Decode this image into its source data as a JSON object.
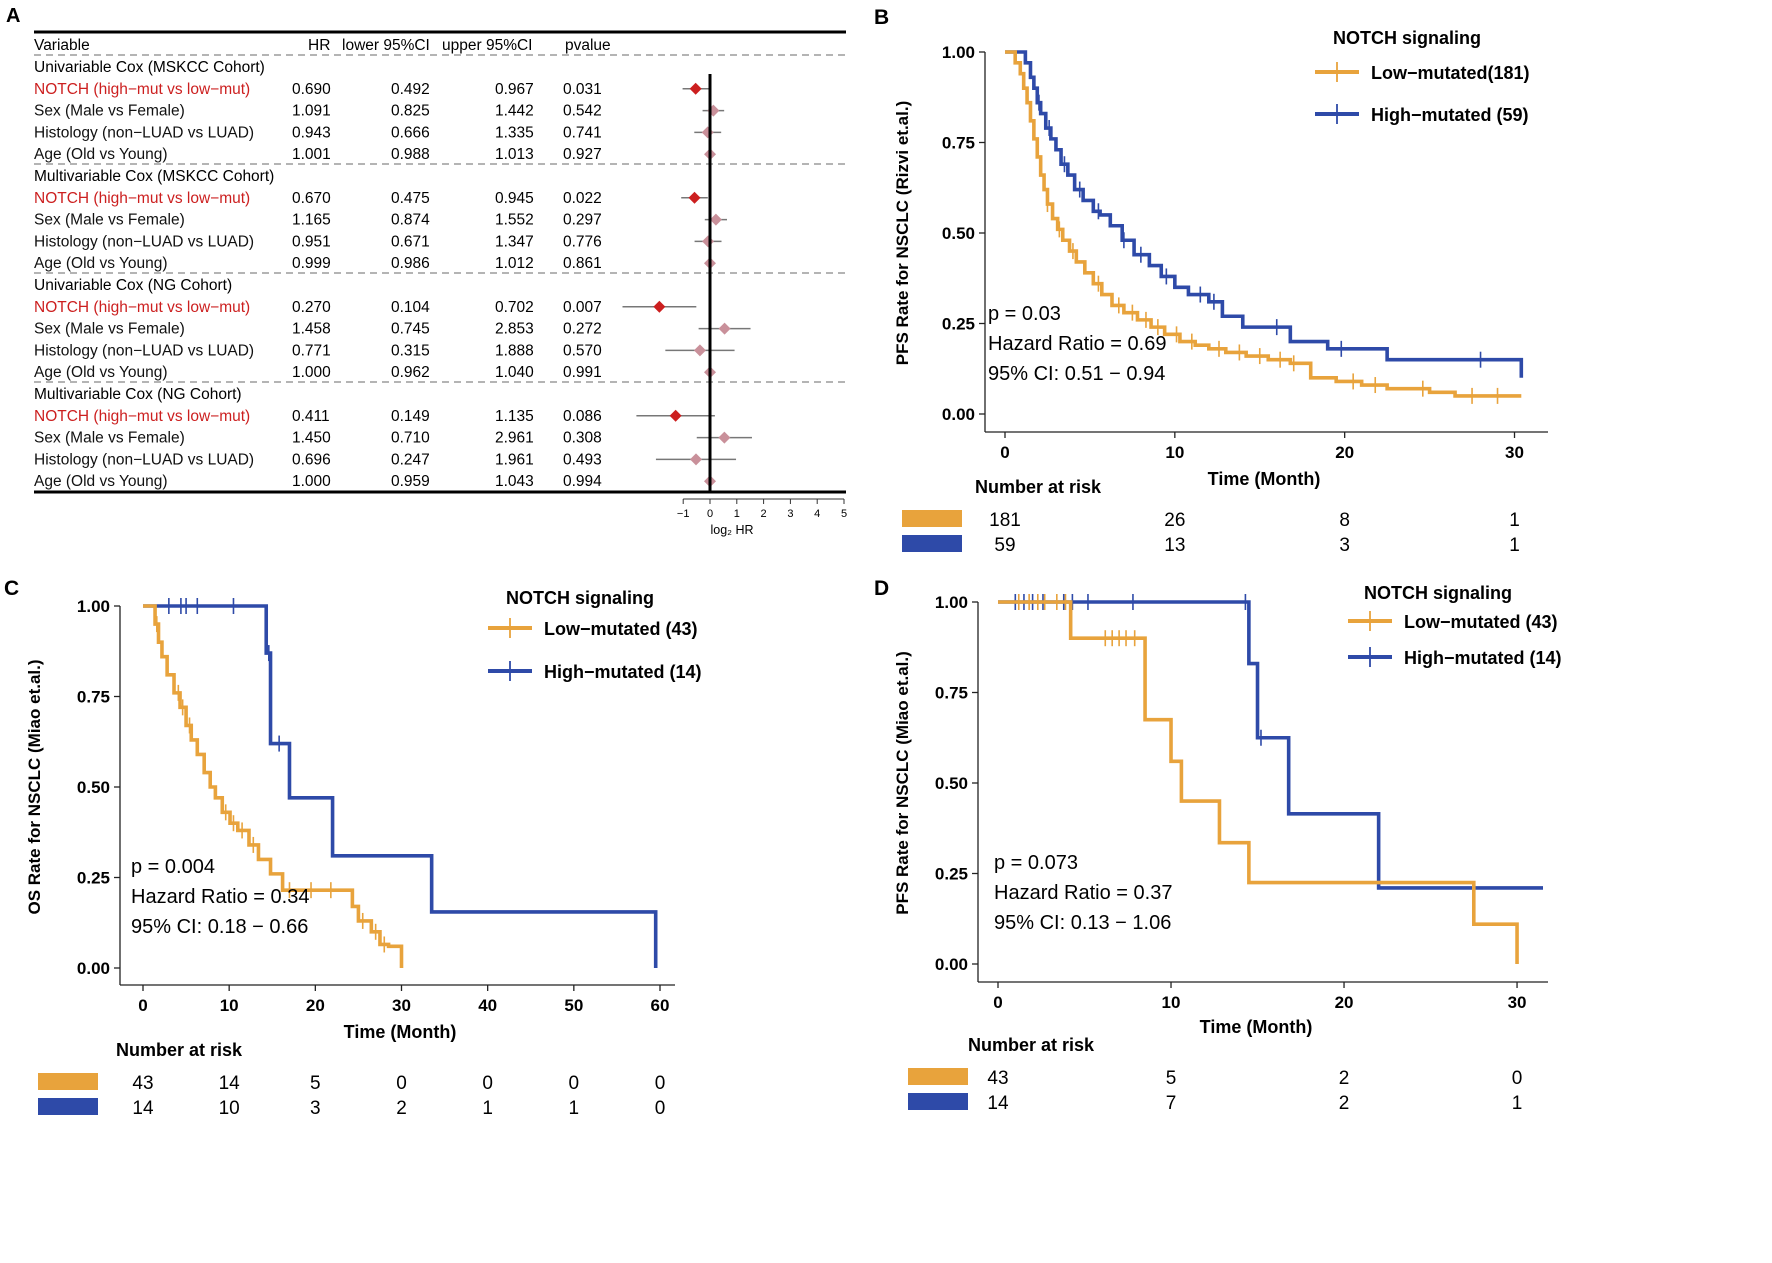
{
  "colors": {
    "low": "#E8A33C",
    "high": "#2E4AA8",
    "red": "#CC1F1F",
    "pink": "#C9909A",
    "grey": "#777777"
  },
  "panels": {
    "A": {
      "letter": "A",
      "headers": [
        "Variable",
        "HR",
        "lower 95%CI",
        "upper 95%CI",
        "pvalue"
      ],
      "x_ticks": [
        "−1",
        "0",
        "1",
        "2",
        "3",
        "4",
        "5"
      ],
      "x_label": "log₂ HR",
      "groups": [
        {
          "title": "Univariable Cox (MSKCC Cohort)",
          "rows": [
            {
              "var": "NOTCH (high−mut vs low−mut)",
              "hr": "0.690",
              "lo": "0.492",
              "hi": "0.967",
              "p": "0.031",
              "highlight": true
            },
            {
              "var": "Sex (Male vs Female)",
              "hr": "1.091",
              "lo": "0.825",
              "hi": "1.442",
              "p": "0.542",
              "highlight": false
            },
            {
              "var": "Histology (non−LUAD vs LUAD)",
              "hr": "0.943",
              "lo": "0.666",
              "hi": "1.335",
              "p": "0.741",
              "highlight": false
            },
            {
              "var": "Age (Old vs Young)",
              "hr": "1.001",
              "lo": "0.988",
              "hi": "1.013",
              "p": "0.927",
              "highlight": false
            }
          ]
        },
        {
          "title": "Multivariable Cox (MSKCC Cohort)",
          "rows": [
            {
              "var": "NOTCH (high−mut vs low−mut)",
              "hr": "0.670",
              "lo": "0.475",
              "hi": "0.945",
              "p": "0.022",
              "highlight": true
            },
            {
              "var": "Sex (Male vs Female)",
              "hr": "1.165",
              "lo": "0.874",
              "hi": "1.552",
              "p": "0.297",
              "highlight": false
            },
            {
              "var": "Histology (non−LUAD vs LUAD)",
              "hr": "0.951",
              "lo": "0.671",
              "hi": "1.347",
              "p": "0.776",
              "highlight": false
            },
            {
              "var": "Age (Old vs Young)",
              "hr": "0.999",
              "lo": "0.986",
              "hi": "1.012",
              "p": "0.861",
              "highlight": false
            }
          ]
        },
        {
          "title": "Univariable Cox (NG Cohort)",
          "rows": [
            {
              "var": "NOTCH (high−mut vs low−mut)",
              "hr": "0.270",
              "lo": "0.104",
              "hi": "0.702",
              "p": "0.007",
              "highlight": true
            },
            {
              "var": "Sex (Male vs Female)",
              "hr": "1.458",
              "lo": "0.745",
              "hi": "2.853",
              "p": "0.272",
              "highlight": false
            },
            {
              "var": "Histology (non−LUAD vs LUAD)",
              "hr": "0.771",
              "lo": "0.315",
              "hi": "1.888",
              "p": "0.570",
              "highlight": false
            },
            {
              "var": "Age (Old vs Young)",
              "hr": "1.000",
              "lo": "0.962",
              "hi": "1.040",
              "p": "0.991",
              "highlight": false
            }
          ]
        },
        {
          "title": "Multivariable Cox (NG Cohort)",
          "rows": [
            {
              "var": "NOTCH (high−mut vs low−mut)",
              "hr": "0.411",
              "lo": "0.149",
              "hi": "1.135",
              "p": "0.086",
              "highlight": true
            },
            {
              "var": "Sex (Male vs Female)",
              "hr": "1.450",
              "lo": "0.710",
              "hi": "2.961",
              "p": "0.308",
              "highlight": false
            },
            {
              "var": "Histology (non−LUAD vs LUAD)",
              "hr": "0.696",
              "lo": "0.247",
              "hi": "1.961",
              "p": "0.493",
              "highlight": false
            },
            {
              "var": "Age (Old vs Young)",
              "hr": "1.000",
              "lo": "0.959",
              "hi": "1.043",
              "p": "0.994",
              "highlight": false
            }
          ]
        }
      ]
    },
    "B": {
      "letter": "B",
      "ylabel": "PFS Rate for NSCLC (Rizvi et.al.)",
      "xlabel": "Time (Month)",
      "x_ticks": [
        "0",
        "10",
        "20",
        "30"
      ],
      "y_ticks": [
        "0.00",
        "0.25",
        "0.50",
        "0.75",
        "1.00"
      ],
      "legend_title": "NOTCH signaling",
      "legend": [
        "Low−mutated(181)",
        "High−mutated (59)"
      ],
      "stats": [
        "p = 0.03",
        "Hazard Ratio = 0.69",
        "95% CI: 0.51 − 0.94"
      ],
      "risk_title": "Number at risk",
      "risk": {
        "low": [
          "181",
          "26",
          "8",
          "1"
        ],
        "high": [
          "59",
          "13",
          "3",
          "1"
        ]
      }
    },
    "C": {
      "letter": "C",
      "ylabel": "OS Rate for NSCLC (Miao et.al.)",
      "xlabel": "Time (Month)",
      "x_ticks": [
        "0",
        "10",
        "20",
        "30",
        "40",
        "50",
        "60"
      ],
      "y_ticks": [
        "0.00",
        "0.25",
        "0.50",
        "0.75",
        "1.00"
      ],
      "legend_title": "NOTCH signaling",
      "legend": [
        "Low−mutated (43)",
        "High−mutated (14)"
      ],
      "stats": [
        "p = 0.004",
        "Hazard Ratio = 0.34",
        "95% CI: 0.18 − 0.66"
      ],
      "risk_title": "Number at risk",
      "risk": {
        "low": [
          "43",
          "14",
          "5",
          "0",
          "0",
          "0",
          "0"
        ],
        "high": [
          "14",
          "10",
          "3",
          "2",
          "1",
          "1",
          "0"
        ]
      }
    },
    "D": {
      "letter": "D",
      "ylabel": "PFS Rate for NSCLC (Miao et.al.)",
      "xlabel": "Time (Month)",
      "x_ticks": [
        "0",
        "10",
        "20",
        "30"
      ],
      "y_ticks": [
        "0.00",
        "0.25",
        "0.50",
        "0.75",
        "1.00"
      ],
      "legend_title": "NOTCH signaling",
      "legend": [
        "Low−mutated (43)",
        "High−mutated (14)"
      ],
      "stats": [
        "p = 0.073",
        "Hazard Ratio = 0.37",
        "95% CI: 0.13 − 1.06"
      ],
      "risk_title": "Number at risk",
      "risk": {
        "low": [
          "43",
          "5",
          "2",
          "0"
        ],
        "high": [
          "14",
          "7",
          "2",
          "1"
        ]
      }
    }
  },
  "chart_data": [
    {
      "type": "forest",
      "title": "A",
      "xlabel": "log2 HR",
      "xlim": [
        -1,
        5
      ],
      "series": [
        {
          "name": "Univariable Cox (MSKCC Cohort)",
          "hr": [
            0.69,
            1.091,
            0.943,
            1.001
          ],
          "lo": [
            0.492,
            0.825,
            0.666,
            0.988
          ],
          "hi": [
            0.967,
            1.442,
            1.335,
            1.013
          ]
        },
        {
          "name": "Multivariable Cox (MSKCC Cohort)",
          "hr": [
            0.67,
            1.165,
            0.951,
            0.999
          ],
          "lo": [
            0.475,
            0.874,
            0.671,
            0.986
          ],
          "hi": [
            0.945,
            1.552,
            1.347,
            1.012
          ]
        },
        {
          "name": "Univariable Cox (NG Cohort)",
          "hr": [
            0.27,
            1.458,
            0.771,
            1.0
          ],
          "lo": [
            0.104,
            0.745,
            0.315,
            0.962
          ],
          "hi": [
            0.702,
            2.853,
            1.888,
            1.04
          ]
        },
        {
          "name": "Multivariable Cox (NG Cohort)",
          "hr": [
            0.411,
            1.45,
            0.696,
            1.0
          ],
          "lo": [
            0.149,
            0.71,
            0.247,
            0.959
          ],
          "hi": [
            1.135,
            2.961,
            1.961,
            1.043
          ]
        }
      ]
    },
    {
      "type": "line",
      "title": "B",
      "xlabel": "Time (Month)",
      "ylabel": "PFS Rate for NSCLC (Rizvi et.al.)",
      "xlim": [
        0,
        30.5
      ],
      "ylim": [
        0,
        1
      ],
      "series": [
        {
          "name": "Low−mutated(181)",
          "x": [
            0,
            0.6,
            0.9,
            1.1,
            1.3,
            1.5,
            1.7,
            1.9,
            2.1,
            2.3,
            2.5,
            2.8,
            3.1,
            3.4,
            3.8,
            4.2,
            4.7,
            5.2,
            5.7,
            6.3,
            7.0,
            7.8,
            8.6,
            9.4,
            10.3,
            11.2,
            12.0,
            13.0,
            14.2,
            15.5,
            16.8,
            18.0,
            19.5,
            21.0,
            22.5,
            24.0,
            25.0,
            26.5,
            28.0,
            30.4
          ],
          "y": [
            1,
            0.97,
            0.94,
            0.9,
            0.86,
            0.81,
            0.76,
            0.71,
            0.66,
            0.62,
            0.58,
            0.54,
            0.51,
            0.48,
            0.45,
            0.42,
            0.39,
            0.36,
            0.33,
            0.3,
            0.28,
            0.26,
            0.24,
            0.22,
            0.2,
            0.19,
            0.18,
            0.17,
            0.16,
            0.15,
            0.14,
            0.1,
            0.09,
            0.08,
            0.07,
            0.07,
            0.06,
            0.05,
            0.05,
            0.05
          ],
          "censor_x": [
            2.5,
            3.2,
            4.0,
            5.5,
            6.7,
            7.5,
            8.3,
            9.0,
            10.1,
            11.0,
            12.6,
            13.8,
            15.0,
            16.2,
            17.0,
            20.5,
            21.8,
            24.6,
            27.5,
            29.0
          ]
        },
        {
          "name": "High−mutated (59)",
          "x": [
            0,
            1.2,
            1.5,
            1.7,
            1.9,
            2.1,
            2.4,
            2.7,
            3.0,
            3.3,
            3.7,
            4.1,
            4.6,
            5.2,
            5.6,
            6.2,
            6.9,
            7.6,
            8.5,
            9.2,
            10.0,
            10.8,
            12.0,
            12.8,
            14.0,
            16.8,
            19.0,
            22.5,
            30.4
          ],
          "y": [
            1,
            0.97,
            0.93,
            0.9,
            0.86,
            0.83,
            0.79,
            0.76,
            0.73,
            0.69,
            0.66,
            0.62,
            0.59,
            0.56,
            0.55,
            0.52,
            0.48,
            0.44,
            0.41,
            0.38,
            0.35,
            0.33,
            0.31,
            0.27,
            0.24,
            0.2,
            0.18,
            0.15,
            0.1
          ],
          "censor_x": [
            2.0,
            2.6,
            3.5,
            4.4,
            5.5,
            7.0,
            8.0,
            9.5,
            11.5,
            12.3,
            16.0,
            19.8,
            28.0
          ]
        }
      ]
    },
    {
      "type": "line",
      "title": "C",
      "xlabel": "Time (Month)",
      "ylabel": "OS Rate for NSCLC (Miao et.al.)",
      "xlim": [
        0,
        60
      ],
      "ylim": [
        0,
        1
      ],
      "series": [
        {
          "name": "Low−mutated (43)",
          "x": [
            0,
            1.4,
            1.8,
            2.2,
            2.8,
            3.6,
            4.3,
            5.0,
            5.6,
            6.3,
            7.1,
            7.8,
            8.4,
            9.2,
            10.1,
            11.0,
            12.3,
            13.4,
            14.8,
            16.2,
            24.3,
            25.0,
            26.5,
            27.5,
            28.5,
            30.0
          ],
          "y": [
            1,
            0.95,
            0.9,
            0.86,
            0.81,
            0.76,
            0.72,
            0.67,
            0.63,
            0.59,
            0.54,
            0.5,
            0.47,
            0.43,
            0.4,
            0.38,
            0.34,
            0.3,
            0.26,
            0.215,
            0.17,
            0.13,
            0.1,
            0.065,
            0.06,
            0
          ],
          "censor_x": [
            1.6,
            4.1,
            4.6,
            5.4,
            9.6,
            10.5,
            11.5,
            12.8,
            17.0,
            19.5,
            21.8,
            25.5,
            27.0,
            28.0
          ]
        },
        {
          "name": "High−mutated (14)",
          "x": [
            0,
            14.3,
            14.8,
            17.0,
            22.0,
            33.5,
            59.5
          ],
          "y": [
            1,
            0.87,
            0.62,
            0.47,
            0.31,
            0.155,
            0
          ],
          "censor_x": [
            3.0,
            4.4,
            5.0,
            6.3,
            10.5,
            14.6,
            15.8
          ]
        }
      ]
    },
    {
      "type": "line",
      "title": "D",
      "xlabel": "Time (Month)",
      "ylabel": "PFS Rate for NSCLC (Miao et.al.)",
      "xlim": [
        0,
        31.5
      ],
      "ylim": [
        0,
        1
      ],
      "series": [
        {
          "name": "Low−mutated (43)",
          "x": [
            0,
            4.2,
            8.5,
            10.0,
            10.6,
            12.8,
            14.5,
            27.5,
            30.0
          ],
          "y": [
            1,
            0.9,
            0.675,
            0.56,
            0.45,
            0.335,
            0.225,
            0.11,
            0
          ],
          "censor_x": [
            1.2,
            1.8,
            2.3,
            2.7,
            3.4,
            3.9,
            6.2,
            6.6,
            7.0,
            7.4,
            7.9
          ]
        },
        {
          "name": "High−mutated (14)",
          "x": [
            0,
            14.5,
            15.0,
            16.8,
            22.0,
            31.5
          ],
          "y": [
            1,
            0.83,
            0.625,
            0.415,
            0.21,
            0.21
          ],
          "censor_x": [
            1.0,
            1.5,
            2.0,
            2.6,
            3.8,
            4.3,
            5.2,
            7.8,
            14.3,
            15.2
          ]
        }
      ]
    }
  ]
}
